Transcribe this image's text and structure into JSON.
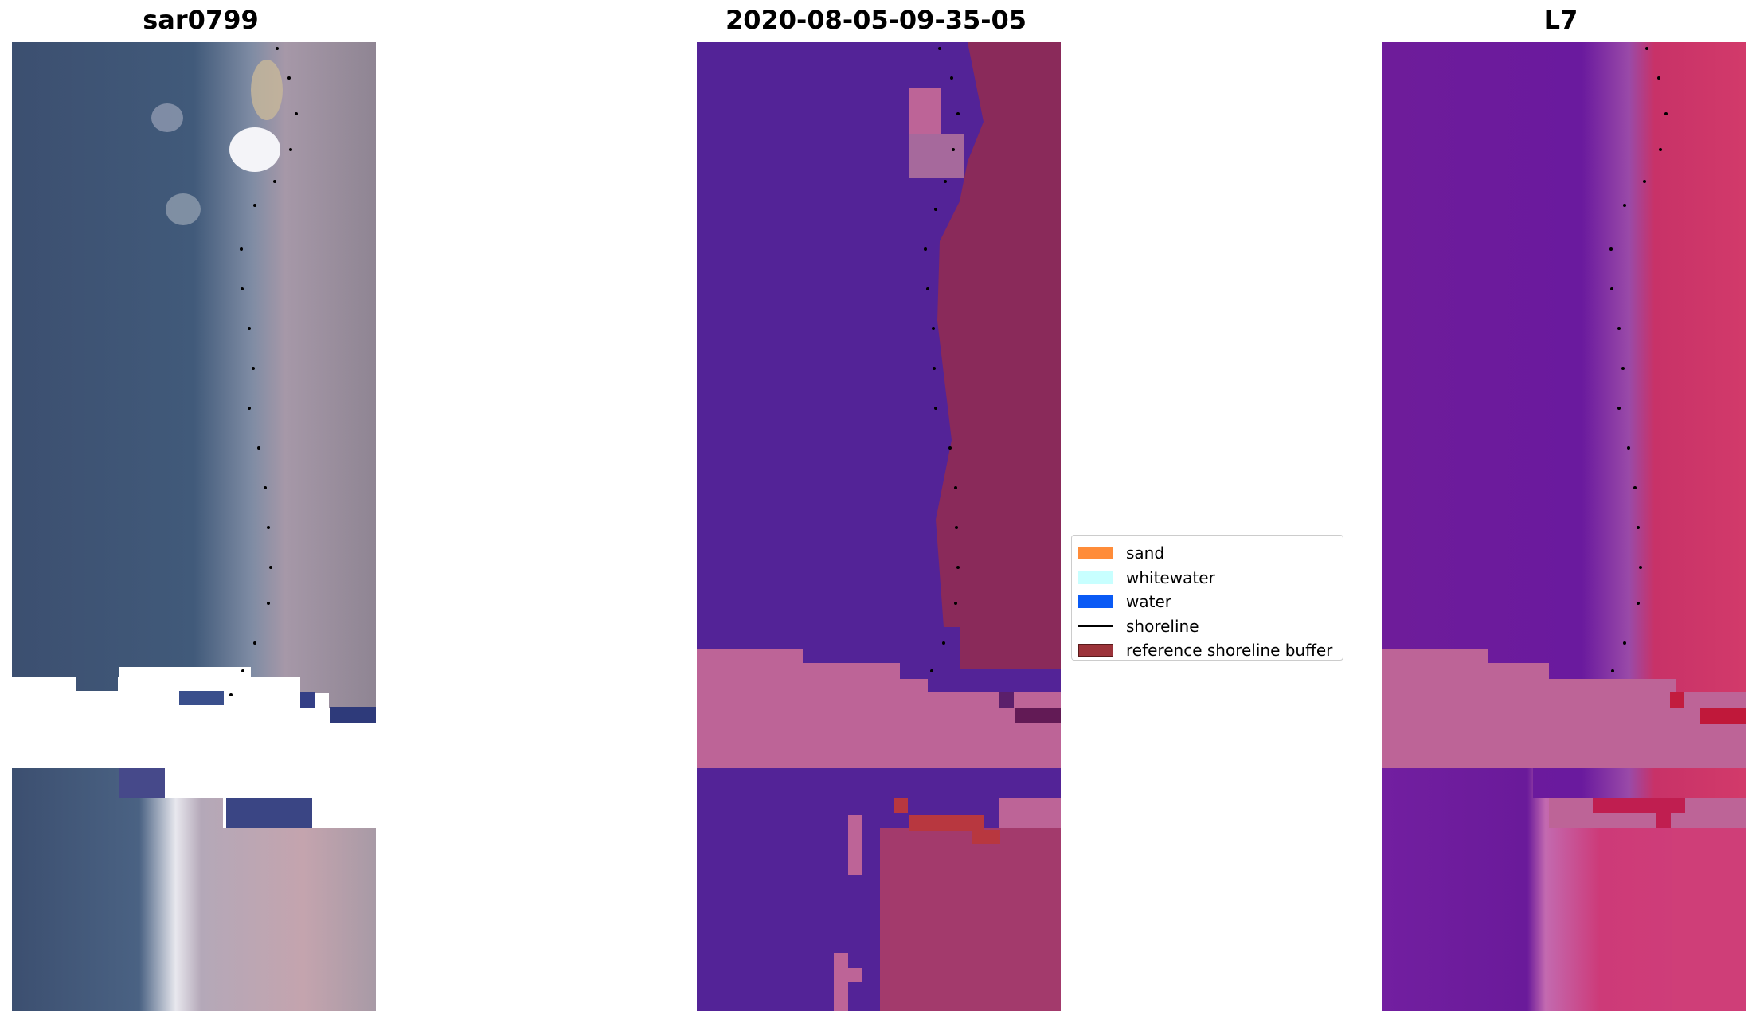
{
  "panels": [
    {
      "title": "sar0799"
    },
    {
      "title": "2020-08-05-09-35-05"
    },
    {
      "title": "L7"
    }
  ],
  "legend": {
    "items": [
      {
        "label": "sand",
        "color": "#ff8c39"
      },
      {
        "label": "whitewater",
        "color": "#c8ffff"
      },
      {
        "label": "water",
        "color": "#0a5af5"
      },
      {
        "label": "shoreline",
        "color": "#000000",
        "kind": "line"
      },
      {
        "label": "reference shoreline buffer",
        "color": "#9c333a"
      }
    ]
  },
  "colors": {
    "rgb_water": "#3d5273",
    "rgb_land": "#a89aa8",
    "class_water": "#532397",
    "class_land": "#8a2a5a",
    "class_nodata": "#bd6497",
    "index_water": "#6b1c99",
    "index_land": "#c83268",
    "index_nodata": "#bd6497"
  }
}
